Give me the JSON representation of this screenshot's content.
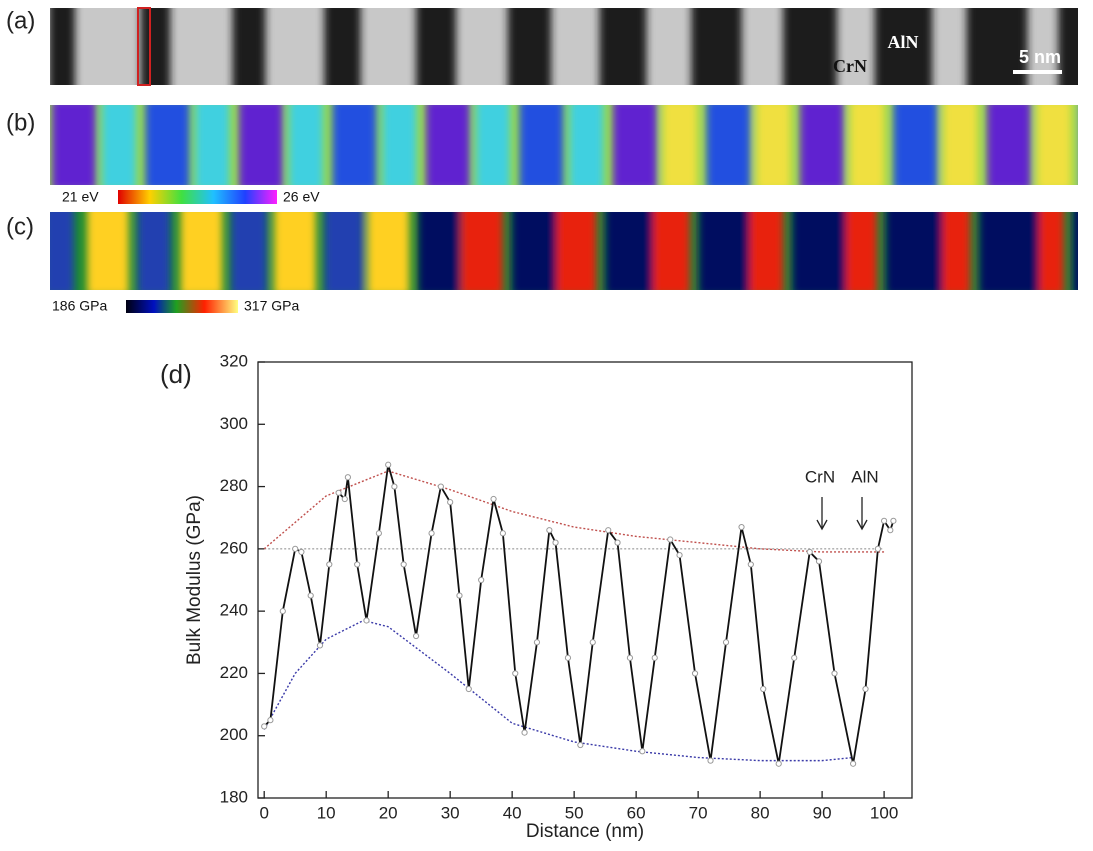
{
  "panels": [
    {
      "label": "(a)",
      "texts": [
        "CrN",
        "AlN",
        "5 nm"
      ]
    },
    {
      "label": "(b)",
      "colorbar": [
        "21 eV",
        "26 eV"
      ]
    },
    {
      "label": "(c)",
      "colorbar": [
        "186 GPa",
        "317 GPa"
      ]
    }
  ],
  "chart_data": {
    "type": "line",
    "label": "(d)",
    "x_label": "Distance (nm)",
    "y_label": "Bulk Modulus (GPa)",
    "annotations": [
      "CrN",
      "AlN"
    ],
    "xlim": [
      -1,
      104.5
    ],
    "ylim": [
      180,
      320
    ],
    "xticks": [
      0,
      10,
      20,
      30,
      40,
      50,
      60,
      70,
      80,
      90,
      100
    ],
    "yticks": [
      180,
      200,
      220,
      240,
      260,
      280,
      300,
      320
    ],
    "series": [
      {
        "color": "#111111",
        "style": "solid",
        "markers": true,
        "x": [
          0,
          1,
          3,
          5,
          6,
          7.5,
          9,
          10.5,
          12,
          13,
          13.5,
          15,
          16.5,
          18.5,
          20,
          21,
          22.5,
          24.5,
          27,
          28.5,
          30,
          31.5,
          33,
          35,
          37,
          38.5,
          40.5,
          42,
          44,
          46,
          47,
          49,
          51,
          53,
          55.5,
          57,
          59,
          61,
          63,
          65.5,
          67,
          69.5,
          72,
          74.5,
          77,
          78.5,
          80.5,
          83,
          85.5,
          88,
          89.5,
          92,
          95,
          97,
          99,
          100,
          101,
          101.5
        ],
        "values": [
          203,
          205,
          240,
          260,
          259,
          245,
          229,
          255,
          278,
          276,
          283,
          255,
          237,
          265,
          287,
          280,
          255,
          232,
          265,
          280,
          275,
          245,
          215,
          250,
          276,
          265,
          220,
          201,
          230,
          266,
          262,
          225,
          197,
          230,
          266,
          262,
          225,
          195,
          225,
          263,
          258,
          220,
          192,
          230,
          267,
          255,
          215,
          191,
          225,
          259,
          256,
          220,
          191,
          215,
          260,
          269,
          266,
          269
        ]
      },
      {
        "color": "#c0504d",
        "style": "dotted",
        "markers": false,
        "x": [
          0,
          10,
          20,
          30,
          40,
          50,
          60,
          70,
          80,
          90,
          100
        ],
        "values": [
          260,
          277,
          285,
          279,
          272,
          267,
          264,
          262,
          260,
          259,
          259
        ]
      },
      {
        "color": "#3a3aa8",
        "style": "dotted",
        "markers": false,
        "x": [
          0,
          5,
          10,
          16,
          20,
          30,
          40,
          50,
          60,
          70,
          80,
          90,
          95
        ],
        "values": [
          202,
          220,
          231,
          237,
          235,
          220,
          204,
          198,
          195,
          193,
          192,
          192,
          193
        ]
      },
      {
        "color": "#aaaaaa",
        "style": "dotted",
        "markers": false,
        "x": [
          0,
          100
        ],
        "values": [
          260,
          260
        ]
      }
    ]
  }
}
